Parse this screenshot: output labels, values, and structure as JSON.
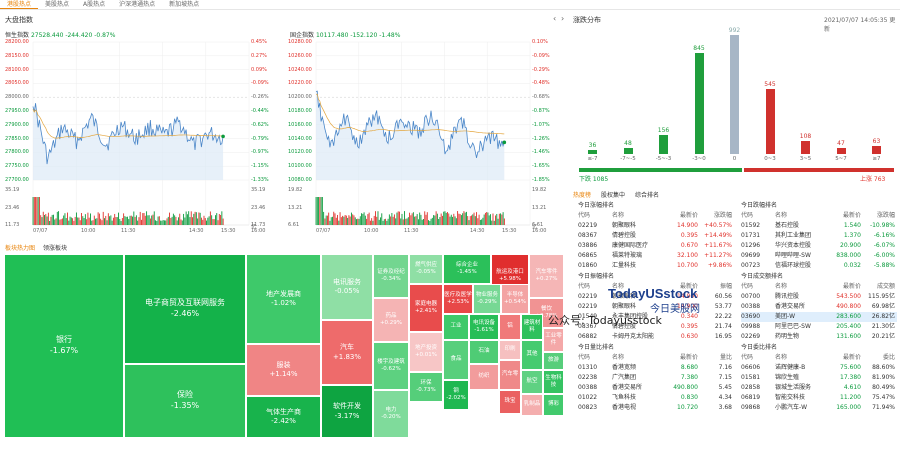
{
  "nav": {
    "tabs": [
      "港股热点",
      "美股热点",
      "A股热点",
      "沪深港通热点",
      "新加坡热点"
    ],
    "active": 0
  },
  "indices": {
    "section_title": "大盘指数",
    "hsi": {
      "name": "恒生指数",
      "value": "27528.440",
      "change": "-244.420",
      "pct": "-0.87%",
      "left_labels": [
        "28200.00",
        "28150.00",
        "28100.00",
        "28050.00",
        "28000.00",
        "27950.00",
        "27900.00",
        "27850.00",
        "27800.00",
        "27750.00",
        "27700.00"
      ],
      "right_labels": [
        "0.45%",
        "0.27%",
        "0.09%",
        "-0.09%",
        "-0.26%",
        "-0.44%",
        "-0.62%",
        "-0.79%",
        "-0.97%",
        "-1.15%",
        "-1.33%"
      ],
      "vol_left": [
        "35.19",
        "23.46",
        "11.73"
      ],
      "vol_right": [
        "35.19",
        "23.46",
        "11.73"
      ],
      "vol_unit": "亿",
      "times": [
        "07/07",
        "10:00",
        "11:30",
        "14:30",
        "15:30",
        "16:00"
      ]
    },
    "hsce": {
      "name": "国企指数",
      "value": "10117.480",
      "change": "-152.120",
      "pct": "-1.48%",
      "left_labels": [
        "10280.00",
        "10260.00",
        "10240.00",
        "10220.00",
        "10200.00",
        "10180.00",
        "10160.00",
        "10140.00",
        "10120.00",
        "10100.00",
        "10080.00"
      ],
      "right_labels": [
        "0.10%",
        "-0.09%",
        "-0.29%",
        "-0.48%",
        "-0.68%",
        "-0.87%",
        "-1.07%",
        "-1.26%",
        "-1.46%",
        "-1.65%",
        "-1.85%"
      ],
      "vol_left": [
        "19.82",
        "13.21",
        "6.61"
      ],
      "vol_right": [
        "19.82",
        "13.21",
        "6.61"
      ],
      "vol_unit": "亿",
      "times": [
        "07/07",
        "10:00",
        "11:30",
        "14:30",
        "15:30",
        "16:00"
      ]
    }
  },
  "heatmap": {
    "tabs": [
      "板块热力图",
      "领涨板块"
    ],
    "tiles": [
      {
        "name": "银行",
        "pct": "-1.67%",
        "color": "#20bf55"
      },
      {
        "name": "电子商贸及互联网服务",
        "pct": "-2.46%",
        "color": "#14b24a"
      },
      {
        "name": "保险",
        "pct": "-1.35%",
        "color": "#2ec15c"
      },
      {
        "name": "地产发展商",
        "pct": "-1.02%",
        "color": "#3ec96a"
      },
      {
        "name": "服装",
        "pct": "+1.14%",
        "color": "#f08585"
      },
      {
        "name": "气体生产商",
        "pct": "-2.42%",
        "color": "#18b34c"
      },
      {
        "name": "电讯服务",
        "pct": "-0.05%",
        "color": "#8fdfa5"
      },
      {
        "name": "汽车",
        "pct": "+1.83%",
        "color": "#ee6b6b"
      },
      {
        "name": "软件开发",
        "pct": "-3.17%",
        "color": "#0ea441"
      },
      {
        "name": "证券及经纪",
        "pct": "-0.34%",
        "color": "#73d690"
      },
      {
        "name": "药品",
        "pct": "+0.29%",
        "color": "#f5b4b4"
      },
      {
        "name": "楼宇及建筑",
        "pct": "-0.62%",
        "color": "#5dd180"
      },
      {
        "name": "电力",
        "pct": "-0.20%",
        "color": "#7fdb9b"
      },
      {
        "name": "家庭电器",
        "pct": "+2.41%",
        "color": "#e84c4c"
      },
      {
        "name": "地产投资",
        "pct": "+0.01%",
        "color": "#f7c6c6"
      },
      {
        "name": "环保",
        "pct": "-0.73%",
        "color": "#55ce7a"
      },
      {
        "name": "燃气供应",
        "pct": "-0.05%",
        "color": "#8fdfa5"
      },
      {
        "name": "综合企业",
        "pct": "-1.45%",
        "color": "#2bc05a"
      },
      {
        "name": "航运及港口",
        "pct": "+5.98%",
        "color": "#e02e2e"
      },
      {
        "name": "汽车零件",
        "pct": "+0.27%",
        "color": "#f5b6b6"
      },
      {
        "name": "医疗及医学",
        "pct": "+2.53%",
        "color": "#e84848"
      },
      {
        "name": "物业服务",
        "pct": "-0.29%",
        "color": "#77d894"
      },
      {
        "name": "半导体",
        "pct": "+0.54%",
        "color": "#f3a3a3"
      },
      {
        "name": "餐饮",
        "pct": "+0.78%",
        "color": "#f19393"
      },
      {
        "name": "工业",
        "pct": "",
        "color": "#3ec96a"
      },
      {
        "name": "电讯设备",
        "pct": "-1.61%",
        "color": "#27be57"
      },
      {
        "name": "铝",
        "pct": "",
        "color": "#f07a7a"
      },
      {
        "name": "建筑材料",
        "pct": "",
        "color": "#2ec15c"
      },
      {
        "name": "工业零件",
        "pct": "",
        "color": "#f4a8a8"
      },
      {
        "name": "食品",
        "pct": "",
        "color": "#58cf7c"
      },
      {
        "name": "石油",
        "pct": "",
        "color": "#4fcc75"
      },
      {
        "name": "钢",
        "pct": "-2.02%",
        "color": "#1fb851"
      },
      {
        "name": "纺织",
        "pct": "",
        "color": "#f29c9c"
      },
      {
        "name": "印刷",
        "pct": "",
        "color": "#f6c0c0"
      },
      {
        "name": "汽车零",
        "pct": "",
        "color": "#ef8989"
      },
      {
        "name": "其他",
        "pct": "",
        "color": "#46cb70"
      },
      {
        "name": "旅游",
        "pct": "",
        "color": "#57ce7b"
      },
      {
        "name": "航空",
        "pct": "",
        "color": "#5fd182"
      },
      {
        "name": "生物科技",
        "pct": "",
        "color": "#35c362"
      },
      {
        "name": "珠宝",
        "pct": "",
        "color": "#ea6060"
      },
      {
        "name": "乳制品",
        "pct": "",
        "color": "#f4aeae"
      },
      {
        "name": "博彩",
        "pct": "",
        "color": "#42ca6d"
      }
    ]
  },
  "distribution": {
    "title": "涨跌分布",
    "time": "2021/07/07 14:05:35 更新",
    "chart_data": {
      "type": "bar",
      "categories": [
        "≤-7",
        "-7~-5",
        "-5~-3",
        "-3~0",
        "0",
        "0~3",
        "3~5",
        "5~7",
        "≥7"
      ],
      "values": [
        36,
        48,
        156,
        845,
        992,
        545,
        108,
        47,
        63
      ],
      "colors": [
        "#1f9e3c",
        "#1f9e3c",
        "#1f9e3c",
        "#1f9e3c",
        "#a7b6c6",
        "#d0312d",
        "#d0312d",
        "#d0312d",
        "#d0312d"
      ]
    },
    "down_label": "下跌 1085",
    "up_label": "上涨 763"
  },
  "rank_tabs": [
    "热度榜",
    "股权集中",
    "综合排名"
  ],
  "rankings": [
    {
      "title": "今日涨幅排名",
      "cols": [
        "代码",
        "名称",
        "最新价",
        "涨跌幅"
      ],
      "rows": [
        [
          "02219",
          "朝聚眼科",
          "14.900",
          "+40.57%"
        ],
        [
          "08367",
          "倩碧控股",
          "0.395",
          "+14.49%"
        ],
        [
          "03886",
          "康健国际医疗",
          "0.670",
          "+11.67%"
        ],
        [
          "06865",
          "福莱特玻璃",
          "32.100",
          "+11.27%"
        ],
        [
          "01860",
          "汇量科技",
          "10.700",
          "+9.86%"
        ]
      ]
    },
    {
      "title": "今日跌幅排名",
      "cols": [
        "代码",
        "名称",
        "最新价",
        "涨跌幅"
      ],
      "rows": [
        [
          "01592",
          "基石控股",
          "1.540",
          "-10.98%"
        ],
        [
          "01731",
          "其利工业集团",
          "1.370",
          "-6.16%"
        ],
        [
          "01296",
          "华兴资本控股",
          "20.900",
          "-6.07%"
        ],
        [
          "09699",
          "哔哩哔哩-SW",
          "838.000",
          "-6.00%"
        ],
        [
          "00723",
          "信福环球控股",
          "0.032",
          "-5.88%"
        ]
      ]
    },
    {
      "title": "今日振幅排名",
      "cols": [
        "代码",
        "名称",
        "最新价",
        "振幅"
      ],
      "rows": [
        [
          "02219",
          "朝聚眼科",
          "14.900",
          "60.56"
        ],
        [
          "02219",
          "朝聚眼科",
          "14.900",
          "53.77"
        ],
        [
          "01549",
          "永丰集团控股",
          "0.340",
          "22.22"
        ],
        [
          "08367",
          "倩碧控股",
          "0.395",
          "21.74"
        ],
        [
          "06882",
          "卡姆丹克太阳能",
          "0.630",
          "16.95"
        ]
      ]
    },
    {
      "title": "今日成交额排名",
      "cols": [
        "代码",
        "名称",
        "最新价",
        "成交额"
      ],
      "rows": [
        [
          "00700",
          "腾讯控股",
          "543.500",
          "115.95亿"
        ],
        [
          "00388",
          "香港交易所",
          "490.800",
          "69.98亿"
        ],
        [
          "03690",
          "美团-W",
          "283.600",
          "26.82亿"
        ],
        [
          "09988",
          "阿里巴巴-SW",
          "205.400",
          "21.30亿"
        ],
        [
          "02269",
          "药明生物",
          "131.600",
          "20.21亿"
        ]
      ]
    },
    {
      "title": "今日量比排名",
      "cols": [
        "代码",
        "名称",
        "最新价",
        "量比"
      ],
      "rows": [
        [
          "01310",
          "香港宽频",
          "8.680",
          "7.16"
        ],
        [
          "02238",
          "广汽集团",
          "7.380",
          "7.15"
        ],
        [
          "00388",
          "香港交易所",
          "490.800",
          "5.45"
        ],
        [
          "01022",
          "飞鱼科技",
          "0.830",
          "4.34"
        ],
        [
          "00823",
          "香港电视",
          "10.720",
          "3.68"
        ]
      ]
    },
    {
      "title": "今日委比排名",
      "cols": [
        "代码",
        "名称",
        "最新价",
        "委比"
      ],
      "rows": [
        [
          "06606",
          "诺辉健康-B",
          "75.600",
          "88.60%"
        ],
        [
          "01581",
          "锦欣生殖",
          "17.380",
          "81.90%"
        ],
        [
          "02858",
          "银城生活服务",
          "4.610",
          "80.49%"
        ],
        [
          "06819",
          "智能交科技",
          "11.200",
          "75.47%"
        ],
        [
          "09868",
          "小鹏汽车-W",
          "165.000",
          "71.94%"
        ]
      ]
    }
  ],
  "watermark": {
    "brand": "TodayUSstock",
    "brand_cn": "今日美股网",
    "wechat": "公众号: Todayusstock"
  }
}
